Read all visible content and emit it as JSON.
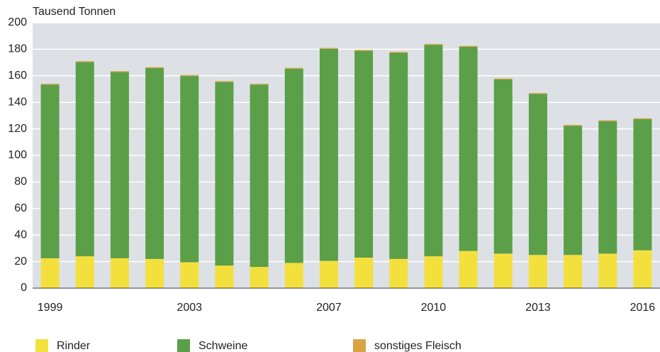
{
  "chart_data": {
    "type": "stacked_bar",
    "y_axis_label": "Tausend Tonnen",
    "categories": [
      "1999",
      null,
      null,
      null,
      "2003",
      null,
      null,
      null,
      "2007",
      null,
      null,
      "2010",
      null,
      null,
      "2013",
      null,
      null,
      "2016"
    ],
    "series": [
      {
        "name": "Rinder",
        "color": "#f4e03c",
        "values": [
          22.5,
          24,
          22.5,
          22,
          19.5,
          17,
          16,
          19,
          20.5,
          23,
          22,
          24,
          28,
          26,
          25,
          25,
          26,
          28.5
        ]
      },
      {
        "name": "Schweine",
        "color": "#5b9f49",
        "values": [
          130.8,
          146.3,
          140.3,
          143.8,
          140.3,
          138.3,
          137.3,
          146.3,
          159.8,
          155.8,
          155.3,
          159.3,
          153.8,
          131.3,
          121.3,
          97.3,
          99.8,
          98.8
        ]
      },
      {
        "name": "sonstiges Fleisch",
        "color": "#d9a443",
        "values": [
          0.7,
          0.7,
          0.7,
          0.7,
          0.7,
          0.7,
          0.7,
          0.7,
          0.7,
          0.7,
          0.7,
          0.7,
          0.7,
          0.7,
          0.7,
          0.7,
          0.7,
          0.7
        ]
      }
    ],
    "ylim": [
      0,
      200
    ],
    "yticks": [
      0,
      20,
      40,
      60,
      80,
      100,
      120,
      140,
      160,
      180,
      200
    ],
    "grid": true
  }
}
